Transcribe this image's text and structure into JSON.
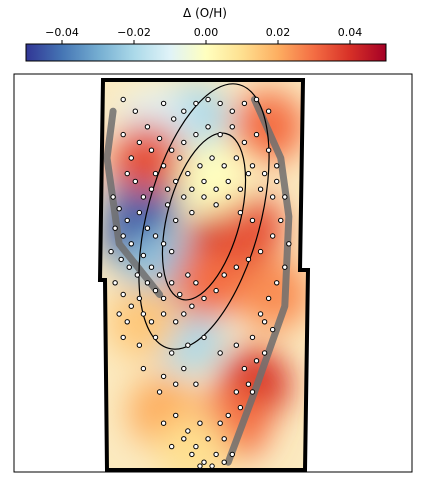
{
  "chart_data": {
    "type": "heatmap",
    "title": "",
    "colorbar": {
      "label": "Δ (O/H)",
      "range": [
        -0.05,
        0.05
      ],
      "ticks": [
        -0.04,
        -0.02,
        0.0,
        0.02,
        0.04
      ],
      "tick_labels": [
        "−0.04",
        "−0.02",
        "0.00",
        "0.02",
        "0.04"
      ],
      "colormap": "RdYlBu_r",
      "colors": [
        "#313695",
        "#4575b4",
        "#74add1",
        "#abd9e9",
        "#e0f3f8",
        "#ffffbf",
        "#fee090",
        "#fdae61",
        "#f46d43",
        "#d73027",
        "#a50026"
      ],
      "placement": "top"
    },
    "field": {
      "background": "#fbeac0",
      "blobs": [
        {
          "x": 0.2,
          "y": 0.3,
          "value": -0.04
        },
        {
          "x": 0.18,
          "y": 0.4,
          "value": -0.045
        },
        {
          "x": 0.28,
          "y": 0.48,
          "value": -0.025
        },
        {
          "x": 0.45,
          "y": 0.1,
          "value": -0.02
        },
        {
          "x": 0.25,
          "y": 0.12,
          "value": -0.01
        },
        {
          "x": 0.42,
          "y": 0.66,
          "value": -0.02
        },
        {
          "x": 0.82,
          "y": 0.12,
          "value": 0.03
        },
        {
          "x": 0.22,
          "y": 0.2,
          "value": 0.035
        },
        {
          "x": 0.6,
          "y": 0.42,
          "value": 0.045
        },
        {
          "x": 0.72,
          "y": 0.38,
          "value": 0.035
        },
        {
          "x": 0.52,
          "y": 0.52,
          "value": 0.03
        },
        {
          "x": 0.75,
          "y": 0.78,
          "value": 0.04
        },
        {
          "x": 0.65,
          "y": 0.88,
          "value": 0.03
        },
        {
          "x": 0.3,
          "y": 0.85,
          "value": 0.02
        },
        {
          "x": 0.85,
          "y": 0.55,
          "value": 0.025
        },
        {
          "x": 0.2,
          "y": 0.62,
          "value": 0.015
        },
        {
          "x": 0.55,
          "y": 0.25,
          "value": 0.0
        },
        {
          "x": 0.45,
          "y": 0.95,
          "value": 0.01
        }
      ]
    },
    "ellipses": [
      {
        "cx": 0.5,
        "cy": 0.35,
        "rx": 0.28,
        "ry": 0.35
      },
      {
        "cx": 0.5,
        "cy": 0.35,
        "rx": 0.18,
        "ry": 0.22
      }
    ],
    "tracks": [
      {
        "name": "",
        "points": [
          [
            0.05,
            0.08
          ],
          [
            0.02,
            0.2
          ],
          [
            0.08,
            0.42
          ],
          [
            0.28,
            0.55
          ]
        ]
      },
      {
        "name": "",
        "points": [
          [
            0.75,
            0.05
          ],
          [
            0.88,
            0.2
          ],
          [
            0.92,
            0.35
          ],
          [
            0.9,
            0.58
          ],
          [
            0.75,
            0.8
          ],
          [
            0.62,
            0.98
          ]
        ]
      }
    ],
    "points": [
      [
        0.1,
        0.05
      ],
      [
        0.16,
        0.08
      ],
      [
        0.22,
        0.12
      ],
      [
        0.1,
        0.14
      ],
      [
        0.3,
        0.06
      ],
      [
        0.35,
        0.1
      ],
      [
        0.4,
        0.08
      ],
      [
        0.46,
        0.06
      ],
      [
        0.52,
        0.05
      ],
      [
        0.58,
        0.06
      ],
      [
        0.64,
        0.08
      ],
      [
        0.7,
        0.06
      ],
      [
        0.76,
        0.05
      ],
      [
        0.82,
        0.08
      ],
      [
        0.28,
        0.15
      ],
      [
        0.34,
        0.18
      ],
      [
        0.4,
        0.16
      ],
      [
        0.46,
        0.14
      ],
      [
        0.52,
        0.12
      ],
      [
        0.58,
        0.14
      ],
      [
        0.64,
        0.12
      ],
      [
        0.7,
        0.16
      ],
      [
        0.76,
        0.14
      ],
      [
        0.82,
        0.18
      ],
      [
        0.86,
        0.22
      ],
      [
        0.3,
        0.22
      ],
      [
        0.36,
        0.26
      ],
      [
        0.42,
        0.24
      ],
      [
        0.48,
        0.22
      ],
      [
        0.54,
        0.2
      ],
      [
        0.6,
        0.22
      ],
      [
        0.66,
        0.2
      ],
      [
        0.72,
        0.24
      ],
      [
        0.78,
        0.28
      ],
      [
        0.84,
        0.3
      ],
      [
        0.05,
        0.3
      ],
      [
        0.08,
        0.33
      ],
      [
        0.12,
        0.36
      ],
      [
        0.06,
        0.38
      ],
      [
        0.1,
        0.4
      ],
      [
        0.14,
        0.42
      ],
      [
        0.04,
        0.44
      ],
      [
        0.09,
        0.46
      ],
      [
        0.13,
        0.48
      ],
      [
        0.17,
        0.5
      ],
      [
        0.2,
        0.45
      ],
      [
        0.24,
        0.48
      ],
      [
        0.28,
        0.5
      ],
      [
        0.22,
        0.52
      ],
      [
        0.26,
        0.54
      ],
      [
        0.3,
        0.56
      ],
      [
        0.34,
        0.52
      ],
      [
        0.38,
        0.55
      ],
      [
        0.42,
        0.5
      ],
      [
        0.46,
        0.52
      ],
      [
        0.06,
        0.52
      ],
      [
        0.1,
        0.55
      ],
      [
        0.14,
        0.58
      ],
      [
        0.18,
        0.56
      ],
      [
        0.08,
        0.6
      ],
      [
        0.12,
        0.62
      ],
      [
        0.2,
        0.6
      ],
      [
        0.24,
        0.62
      ],
      [
        0.3,
        0.6
      ],
      [
        0.36,
        0.62
      ],
      [
        0.4,
        0.6
      ],
      [
        0.44,
        0.58
      ],
      [
        0.5,
        0.56
      ],
      [
        0.56,
        0.54
      ],
      [
        0.6,
        0.5
      ],
      [
        0.66,
        0.48
      ],
      [
        0.72,
        0.46
      ],
      [
        0.78,
        0.44
      ],
      [
        0.84,
        0.4
      ],
      [
        0.88,
        0.36
      ],
      [
        0.32,
        0.32
      ],
      [
        0.36,
        0.36
      ],
      [
        0.4,
        0.3
      ],
      [
        0.44,
        0.34
      ],
      [
        0.5,
        0.3
      ],
      [
        0.56,
        0.32
      ],
      [
        0.62,
        0.3
      ],
      [
        0.68,
        0.34
      ],
      [
        0.74,
        0.36
      ],
      [
        0.16,
        0.26
      ],
      [
        0.2,
        0.3
      ],
      [
        0.24,
        0.28
      ],
      [
        0.18,
        0.34
      ],
      [
        0.22,
        0.38
      ],
      [
        0.26,
        0.4
      ],
      [
        0.3,
        0.42
      ],
      [
        0.34,
        0.44
      ],
      [
        0.1,
        0.66
      ],
      [
        0.18,
        0.68
      ],
      [
        0.26,
        0.66
      ],
      [
        0.34,
        0.7
      ],
      [
        0.42,
        0.68
      ],
      [
        0.5,
        0.66
      ],
      [
        0.58,
        0.7
      ],
      [
        0.66,
        0.68
      ],
      [
        0.74,
        0.66
      ],
      [
        0.8,
        0.62
      ],
      [
        0.2,
        0.74
      ],
      [
        0.3,
        0.76
      ],
      [
        0.4,
        0.74
      ],
      [
        0.36,
        0.78
      ],
      [
        0.28,
        0.8
      ],
      [
        0.46,
        0.78
      ],
      [
        0.7,
        0.74
      ],
      [
        0.74,
        0.8
      ],
      [
        0.68,
        0.84
      ],
      [
        0.3,
        0.88
      ],
      [
        0.36,
        0.86
      ],
      [
        0.42,
        0.9
      ],
      [
        0.48,
        0.88
      ],
      [
        0.6,
        0.92
      ],
      [
        0.56,
        0.96
      ],
      [
        0.5,
        0.98
      ],
      [
        0.44,
        0.96
      ],
      [
        0.64,
        0.96
      ],
      [
        0.14,
        0.2
      ],
      [
        0.12,
        0.24
      ],
      [
        0.18,
        0.16
      ],
      [
        0.24,
        0.18
      ],
      [
        0.26,
        0.24
      ],
      [
        0.32,
        0.28
      ],
      [
        0.38,
        0.2
      ],
      [
        0.44,
        0.28
      ],
      [
        0.5,
        0.26
      ],
      [
        0.56,
        0.28
      ],
      [
        0.62,
        0.26
      ],
      [
        0.68,
        0.28
      ],
      [
        0.74,
        0.22
      ],
      [
        0.8,
        0.24
      ],
      [
        0.86,
        0.26
      ],
      [
        0.9,
        0.3
      ],
      [
        0.92,
        0.42
      ],
      [
        0.9,
        0.48
      ],
      [
        0.86,
        0.52
      ],
      [
        0.82,
        0.56
      ],
      [
        0.78,
        0.6
      ],
      [
        0.84,
        0.64
      ],
      [
        0.8,
        0.7
      ],
      [
        0.76,
        0.72
      ],
      [
        0.72,
        0.78
      ],
      [
        0.66,
        0.8
      ],
      [
        0.62,
        0.86
      ],
      [
        0.58,
        0.88
      ],
      [
        0.52,
        0.92
      ],
      [
        0.46,
        0.94
      ],
      [
        0.4,
        0.92
      ],
      [
        0.34,
        0.94
      ],
      [
        0.6,
        0.98
      ],
      [
        0.54,
        0.99
      ],
      [
        0.48,
        0.99
      ]
    ]
  }
}
